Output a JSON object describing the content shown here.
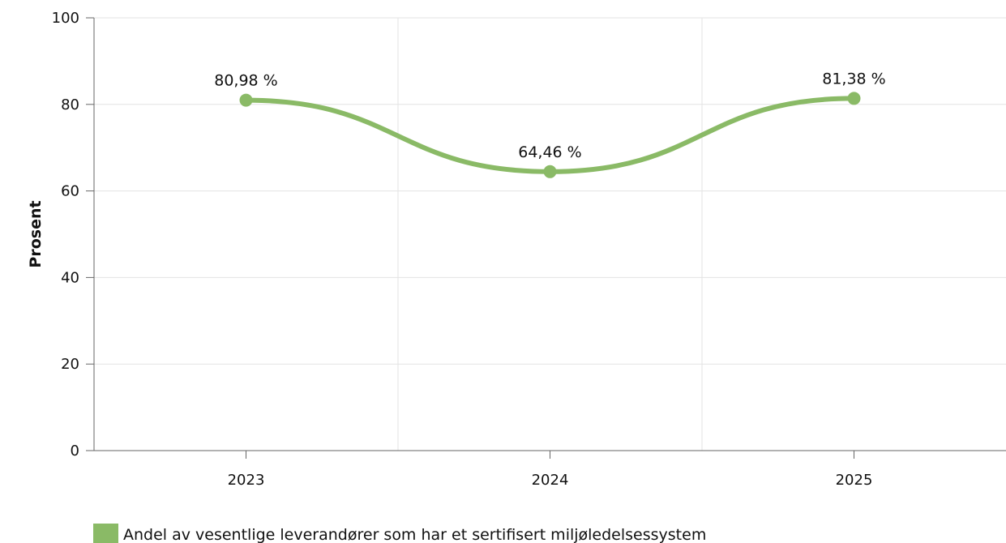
{
  "chart_data": {
    "type": "line",
    "x": [
      "2023",
      "2024",
      "2025"
    ],
    "series": [
      {
        "name": "Andel av vesentlige leverandører som har et sertifisert miljøledelsessystem",
        "values": [
          80.98,
          64.46,
          81.38
        ],
        "labels": [
          "80,98 %",
          "64,46 %",
          "81,38 %"
        ],
        "color": "#8aba66"
      }
    ],
    "xlabel": "",
    "ylabel": "Prosent",
    "ylim": [
      0,
      100
    ],
    "yticks": [
      "0",
      "20",
      "40",
      "60",
      "80",
      "100"
    ],
    "grid": true,
    "smooth": true,
    "legend_position": "bottom-left"
  }
}
